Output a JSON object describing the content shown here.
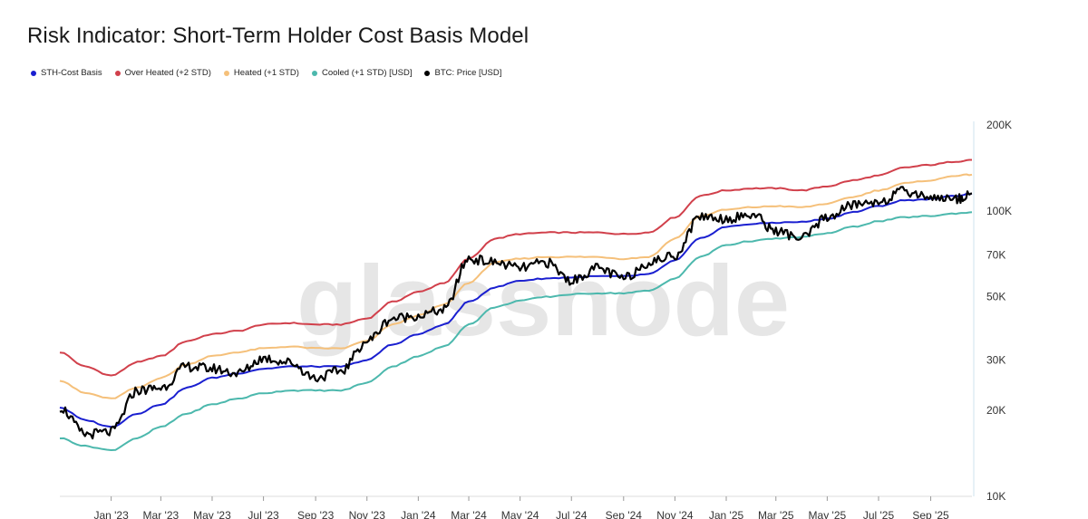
{
  "title": "Risk Indicator: Short-Term Holder Cost Basis Model",
  "watermark": "glassnode",
  "legend": [
    {
      "label": "STH-Cost Basis",
      "color": "#1a1fd0"
    },
    {
      "label": "Over Heated (+2 STD)",
      "color": "#d1404b"
    },
    {
      "label": "Heated (+1 STD)",
      "color": "#f5c07a"
    },
    {
      "label": "Cooled (+1 STD) [USD]",
      "color": "#4cb8ad"
    },
    {
      "label": "BTC: Price [USD]",
      "color": "#000000"
    }
  ],
  "chart_data": {
    "type": "line",
    "title": "Risk Indicator: Short-Term Holder Cost Basis Model",
    "y_scale": "log",
    "ylim": [
      10000,
      200000
    ],
    "y_ticks": [
      {
        "value": 200000,
        "label": "200K"
      },
      {
        "value": 100000,
        "label": "100K"
      },
      {
        "value": 70000,
        "label": "70K"
      },
      {
        "value": 50000,
        "label": "50K"
      },
      {
        "value": 30000,
        "label": "30K"
      },
      {
        "value": 20000,
        "label": "20K"
      },
      {
        "value": 10000,
        "label": "10K"
      }
    ],
    "xlim": [
      "2022-11-01",
      "2025-10-20"
    ],
    "x_ticks": [
      {
        "date": "2023-01-01",
        "label": "Jan '23"
      },
      {
        "date": "2023-03-01",
        "label": "Mar '23"
      },
      {
        "date": "2023-05-01",
        "label": "May '23"
      },
      {
        "date": "2023-07-01",
        "label": "Jul '23"
      },
      {
        "date": "2023-09-01",
        "label": "Sep '23"
      },
      {
        "date": "2023-11-01",
        "label": "Nov '23"
      },
      {
        "date": "2024-01-01",
        "label": "Jan '24"
      },
      {
        "date": "2024-03-01",
        "label": "Mar '24"
      },
      {
        "date": "2024-05-01",
        "label": "May '24"
      },
      {
        "date": "2024-07-01",
        "label": "Jul '24"
      },
      {
        "date": "2024-09-01",
        "label": "Sep '24"
      },
      {
        "date": "2024-11-01",
        "label": "Nov '24"
      },
      {
        "date": "2025-01-01",
        "label": "Jan '25"
      },
      {
        "date": "2025-03-01",
        "label": "Mar '25"
      },
      {
        "date": "2025-05-01",
        "label": "May '25"
      },
      {
        "date": "2025-07-01",
        "label": "Jul '25"
      },
      {
        "date": "2025-09-01",
        "label": "Sep '25"
      }
    ],
    "x": [
      "2022-11-01",
      "2022-12-01",
      "2023-01-01",
      "2023-02-01",
      "2023-03-01",
      "2023-04-01",
      "2023-05-01",
      "2023-06-01",
      "2023-07-01",
      "2023-08-01",
      "2023-09-01",
      "2023-10-01",
      "2023-11-01",
      "2023-12-01",
      "2024-01-01",
      "2024-02-01",
      "2024-03-01",
      "2024-04-01",
      "2024-05-01",
      "2024-06-01",
      "2024-07-01",
      "2024-08-01",
      "2024-09-01",
      "2024-10-01",
      "2024-11-01",
      "2024-12-01",
      "2025-01-01",
      "2025-02-01",
      "2025-03-01",
      "2025-04-01",
      "2025-05-01",
      "2025-06-01",
      "2025-07-01",
      "2025-08-01",
      "2025-09-01",
      "2025-10-01",
      "2025-10-20"
    ],
    "series": [
      {
        "name": "Over Heated (+2 STD)",
        "color": "#d1404b",
        "values": [
          32000,
          28500,
          26500,
          29500,
          31000,
          35000,
          37000,
          38000,
          40000,
          40500,
          40000,
          40000,
          42000,
          48000,
          52000,
          56000,
          68000,
          80000,
          83000,
          84000,
          84000,
          84000,
          83000,
          84000,
          95000,
          113000,
          118000,
          120000,
          120000,
          118000,
          122000,
          128000,
          133000,
          142000,
          145000,
          149000,
          151000
        ]
      },
      {
        "name": "Heated (+1 STD)",
        "color": "#f5c07a",
        "values": [
          25500,
          23000,
          22000,
          24000,
          26000,
          29000,
          31000,
          32000,
          33000,
          33500,
          33000,
          33000,
          35000,
          40000,
          43000,
          47000,
          56000,
          66000,
          68000,
          69000,
          69000,
          69000,
          68000,
          69000,
          80000,
          96000,
          101000,
          103000,
          104000,
          103000,
          106000,
          112000,
          118000,
          125000,
          128000,
          133000,
          134000
        ]
      },
      {
        "name": "STH-Cost Basis",
        "color": "#1a1fd0",
        "values": [
          20500,
          18500,
          17500,
          19500,
          21000,
          24000,
          26000,
          27000,
          28000,
          28500,
          28500,
          28500,
          30000,
          34000,
          37000,
          40000,
          48000,
          54000,
          57000,
          58000,
          58500,
          59000,
          59000,
          60000,
          67000,
          80000,
          88000,
          90000,
          91000,
          91500,
          94000,
          99000,
          104000,
          109000,
          110000,
          113000,
          115000
        ]
      },
      {
        "name": "Cooled (+1 STD) [USD]",
        "color": "#4cb8ad",
        "values": [
          16000,
          15000,
          14500,
          16000,
          17500,
          19500,
          21000,
          22000,
          23000,
          23500,
          23500,
          23500,
          25000,
          28500,
          31000,
          33500,
          40000,
          46000,
          48500,
          50000,
          51000,
          51500,
          51500,
          52500,
          58000,
          69000,
          76000,
          78500,
          80000,
          81000,
          83500,
          88000,
          92000,
          95000,
          96000,
          98000,
          99000
        ]
      },
      {
        "name": "BTC: Price [USD]",
        "color": "#000000",
        "values": [
          20500,
          16500,
          16800,
          23500,
          24000,
          28500,
          28000,
          27000,
          30500,
          29500,
          26000,
          27500,
          35000,
          42000,
          43000,
          45000,
          68000,
          66000,
          63000,
          66000,
          57000,
          63000,
          58000,
          66000,
          70000,
          96000,
          94000,
          97000,
          85000,
          80000,
          95000,
          105000,
          108000,
          117000,
          112000,
          110000,
          115000
        ]
      }
    ]
  }
}
